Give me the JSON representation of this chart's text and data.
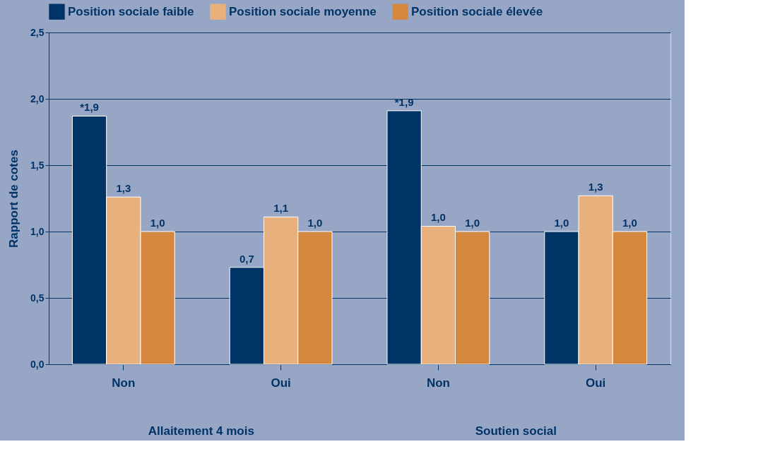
{
  "chart_data": {
    "type": "bar",
    "ylabel": "Rapport de cotes",
    "categories": [
      "Non",
      "Oui",
      "Non",
      "Oui"
    ],
    "series": [
      {
        "name": "Position sociale faible",
        "color": "#003366",
        "values": [
          1.87,
          0.73,
          1.91,
          1.0
        ],
        "value_labels": [
          "*1,9",
          "0,7",
          "*1,9",
          "1,0"
        ]
      },
      {
        "name": "Position sociale moyenne",
        "color": "#e8b07c",
        "values": [
          1.26,
          1.11,
          1.04,
          1.27
        ],
        "value_labels": [
          "1,3",
          "1,1",
          "1,0",
          "1,3"
        ]
      },
      {
        "name": "Position sociale élevée",
        "color": "#d4873e",
        "values": [
          1.0,
          1.0,
          1.0,
          1.0
        ],
        "value_labels": [
          "1,0",
          "1,0",
          "1,0",
          "1,0"
        ]
      }
    ],
    "ylim": [
      0,
      2.5
    ],
    "yticks": [
      {
        "value": 0,
        "label": "0,0"
      },
      {
        "value": 0.5,
        "label": "0,5"
      },
      {
        "value": 1,
        "label": "1,0"
      },
      {
        "value": 1.5,
        "label": "1,5"
      },
      {
        "value": 2,
        "label": "2,0"
      },
      {
        "value": 2.5,
        "label": "2,5"
      }
    ],
    "grid": "y",
    "legend": "top",
    "annotations": [
      "Allaitement 4 mois",
      "Soutien social"
    ]
  }
}
